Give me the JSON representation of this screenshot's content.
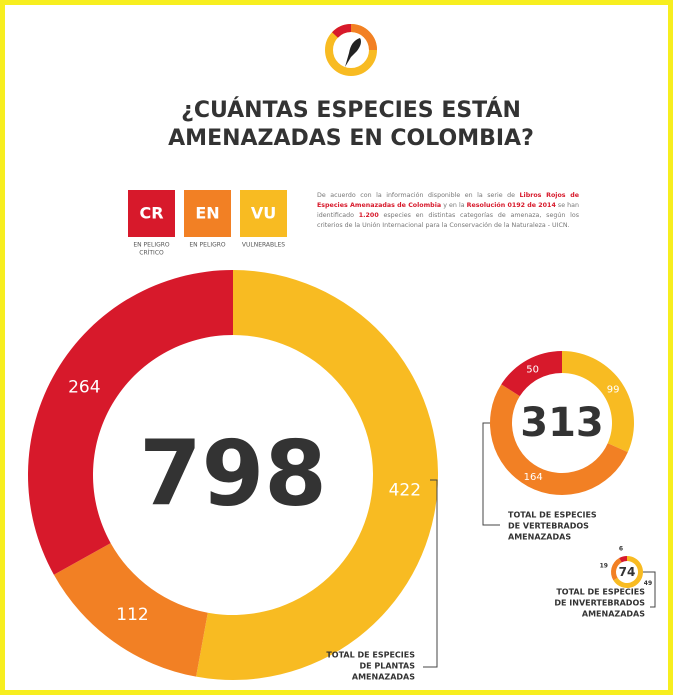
{
  "header": {
    "title": [
      "¿CUÁNTAS ESPECIES ESTÁN",
      "AMENAZADAS EN COLOMBIA?"
    ]
  },
  "legend": [
    {
      "code": "CR",
      "label": [
        "EN PELIGRO",
        "CRÍTICO"
      ],
      "color": "#d7192b"
    },
    {
      "code": "EN",
      "label": [
        "EN PELIGRO"
      ],
      "color": "#f28024"
    },
    {
      "code": "VU",
      "label": [
        "VULNERABLES"
      ],
      "color": "#f8bb22"
    }
  ],
  "paragraph": [
    {
      "text": "De acuerdo con la información disponible en la serie de ",
      "bold": false
    },
    {
      "text": "Libros Rojos de Especies Amenazadas de Colombia",
      "bold": true
    },
    {
      "text": " y en la ",
      "bold": false
    },
    {
      "text": "Resolución 0192 de 2014",
      "bold": true
    },
    {
      "text": " se han identificado ",
      "bold": false
    },
    {
      "text": "1.200",
      "bold": true
    },
    {
      "text": " especies en distintas categorías de amenaza, según los criterios de la Unión Internacional para la Conservación de la Naturaleza - UICN.",
      "bold": false
    }
  ],
  "chart_data": [
    {
      "type": "donut",
      "values": [
        264,
        112,
        422
      ],
      "total": 798,
      "label": [
        "TOTAL DE ESPECIES",
        "DE PLANTAS",
        "AMENAZADAS"
      ]
    },
    {
      "type": "donut",
      "values": [
        50,
        164,
        99
      ],
      "total": 313,
      "label": [
        "TOTAL DE ESPECIES",
        "DE VERTEBRADOS",
        "AMENAZADAS"
      ]
    },
    {
      "type": "donut",
      "values": [
        6,
        19,
        49
      ],
      "total": 74,
      "label": [
        "TOTAL DE ESPECIES",
        "DE INVERTEBRADOS",
        "AMENAZADAS"
      ]
    }
  ]
}
